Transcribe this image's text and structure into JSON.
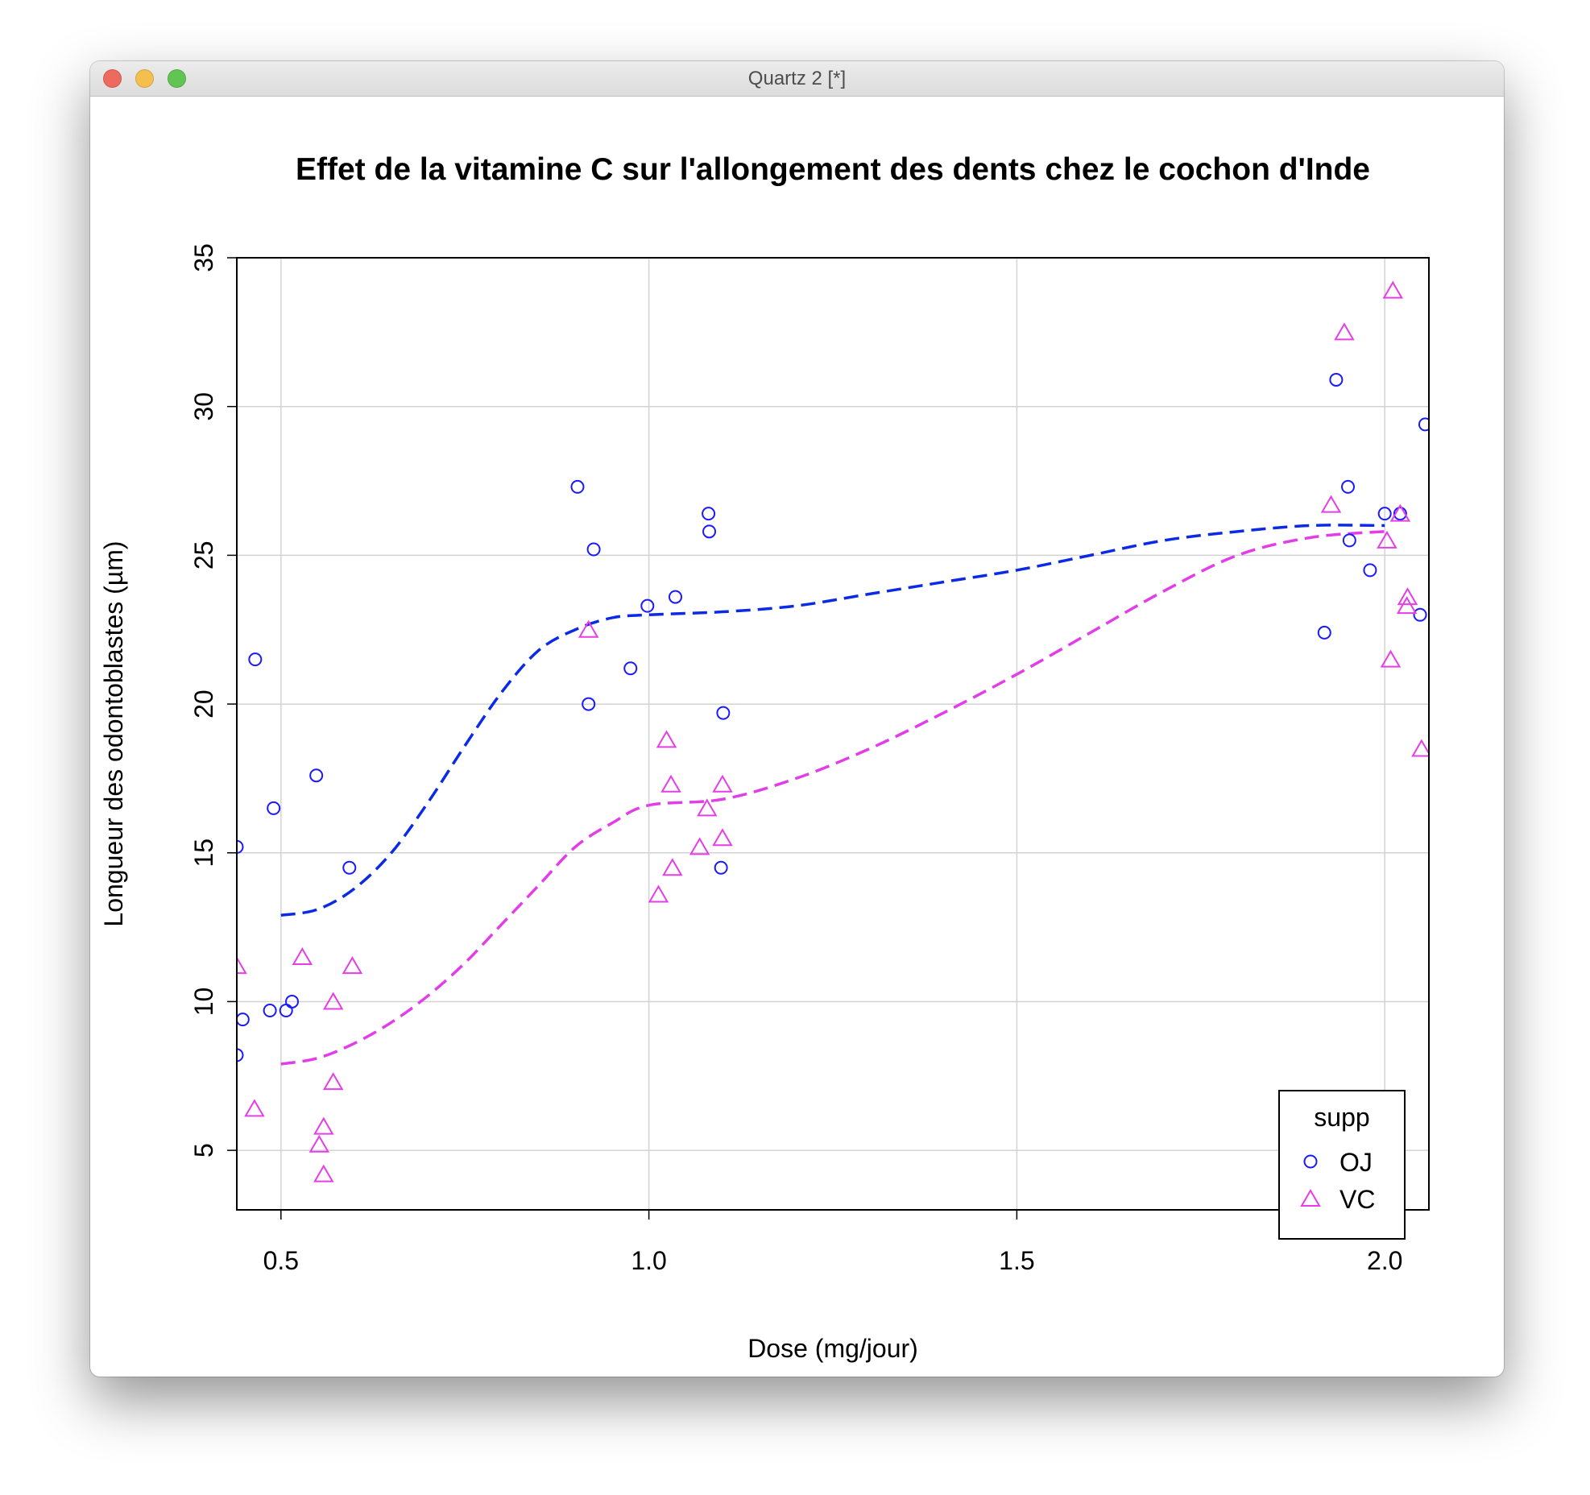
{
  "window": {
    "title": "Quartz 2 [*]",
    "buttons": [
      "close",
      "minimize",
      "zoom"
    ]
  },
  "chart_data": {
    "type": "scatter",
    "title": "Effet de la vitamine C sur l'allongement des dents chez le cochon d'Inde",
    "xlabel": "Dose (mg/jour)",
    "ylabel": "Longueur des odontoblastes (µm)",
    "xlim": [
      0.44,
      2.06
    ],
    "ylim": [
      3,
      35
    ],
    "xticks": [
      "0.5",
      "1.0",
      "1.5",
      "2.0"
    ],
    "yticks": [
      "5",
      "10",
      "15",
      "20",
      "25",
      "30",
      "35"
    ],
    "grid": true,
    "legend": {
      "title": "supp",
      "position": "bottom-right",
      "entries": [
        "OJ",
        "VC"
      ]
    },
    "colors": {
      "OJ": "#1a1aff",
      "VC": "#e63de6",
      "OJ_line": "#0a2ae6",
      "VC_line": "#e23de8",
      "grid": "#d3d3d3"
    },
    "series": [
      {
        "name": "OJ",
        "marker": "circle",
        "points": [
          [
            0.44,
            15.2
          ],
          [
            0.44,
            8.2
          ],
          [
            0.448,
            9.4
          ],
          [
            0.465,
            21.5
          ],
          [
            0.49,
            16.5
          ],
          [
            0.485,
            9.7
          ],
          [
            0.507,
            9.7
          ],
          [
            0.515,
            10.0
          ],
          [
            0.548,
            17.6
          ],
          [
            0.593,
            14.5
          ],
          [
            0.903,
            27.3
          ],
          [
            0.925,
            25.2
          ],
          [
            0.918,
            20.0
          ],
          [
            0.975,
            21.2
          ],
          [
            0.998,
            23.3
          ],
          [
            1.036,
            23.6
          ],
          [
            1.081,
            26.4
          ],
          [
            1.082,
            25.8
          ],
          [
            1.101,
            19.7
          ],
          [
            1.098,
            14.5
          ],
          [
            1.918,
            22.4
          ],
          [
            1.934,
            30.9
          ],
          [
            1.95,
            27.3
          ],
          [
            1.952,
            25.5
          ],
          [
            1.98,
            24.5
          ],
          [
            2.0,
            26.4
          ],
          [
            2.021,
            26.4
          ],
          [
            2.048,
            23.0
          ],
          [
            2.055,
            29.4
          ]
        ]
      },
      {
        "name": "VC",
        "marker": "triangle",
        "points": [
          [
            0.44,
            11.2
          ],
          [
            0.464,
            6.4
          ],
          [
            0.529,
            11.5
          ],
          [
            0.552,
            5.2
          ],
          [
            0.558,
            5.8
          ],
          [
            0.558,
            4.2
          ],
          [
            0.571,
            10.0
          ],
          [
            0.571,
            7.3
          ],
          [
            0.597,
            11.2
          ],
          [
            0.918,
            22.5
          ],
          [
            1.013,
            13.6
          ],
          [
            1.024,
            18.8
          ],
          [
            1.03,
            17.3
          ],
          [
            1.032,
            14.5
          ],
          [
            1.069,
            15.2
          ],
          [
            1.079,
            16.5
          ],
          [
            1.1,
            17.3
          ],
          [
            1.1,
            15.5
          ],
          [
            1.927,
            26.7
          ],
          [
            1.945,
            32.5
          ],
          [
            2.003,
            25.5
          ],
          [
            2.008,
            21.5
          ],
          [
            2.011,
            33.9
          ],
          [
            2.021,
            26.4
          ],
          [
            2.03,
            23.3
          ],
          [
            2.031,
            23.6
          ],
          [
            2.05,
            18.5
          ]
        ]
      }
    ],
    "smooth_lines": [
      {
        "name": "OJ",
        "points": [
          [
            0.5,
            12.9
          ],
          [
            0.55,
            13.1
          ],
          [
            0.6,
            13.8
          ],
          [
            0.65,
            15.0
          ],
          [
            0.7,
            16.7
          ],
          [
            0.75,
            18.6
          ],
          [
            0.8,
            20.4
          ],
          [
            0.85,
            21.8
          ],
          [
            0.9,
            22.5
          ],
          [
            0.95,
            22.9
          ],
          [
            1.0,
            23.0
          ],
          [
            1.1,
            23.1
          ],
          [
            1.2,
            23.3
          ],
          [
            1.3,
            23.7
          ],
          [
            1.4,
            24.1
          ],
          [
            1.5,
            24.5
          ],
          [
            1.6,
            25.0
          ],
          [
            1.7,
            25.5
          ],
          [
            1.8,
            25.8
          ],
          [
            1.9,
            26.0
          ],
          [
            2.0,
            26.0
          ]
        ]
      },
      {
        "name": "VC",
        "points": [
          [
            0.5,
            7.9
          ],
          [
            0.55,
            8.1
          ],
          [
            0.6,
            8.6
          ],
          [
            0.65,
            9.3
          ],
          [
            0.7,
            10.2
          ],
          [
            0.75,
            11.3
          ],
          [
            0.8,
            12.6
          ],
          [
            0.85,
            13.9
          ],
          [
            0.9,
            15.2
          ],
          [
            0.95,
            16.0
          ],
          [
            1.0,
            16.6
          ],
          [
            1.1,
            16.8
          ],
          [
            1.2,
            17.5
          ],
          [
            1.3,
            18.5
          ],
          [
            1.4,
            19.7
          ],
          [
            1.5,
            21.0
          ],
          [
            1.6,
            22.4
          ],
          [
            1.7,
            23.8
          ],
          [
            1.8,
            25.0
          ],
          [
            1.9,
            25.6
          ],
          [
            2.0,
            25.8
          ]
        ]
      }
    ]
  }
}
